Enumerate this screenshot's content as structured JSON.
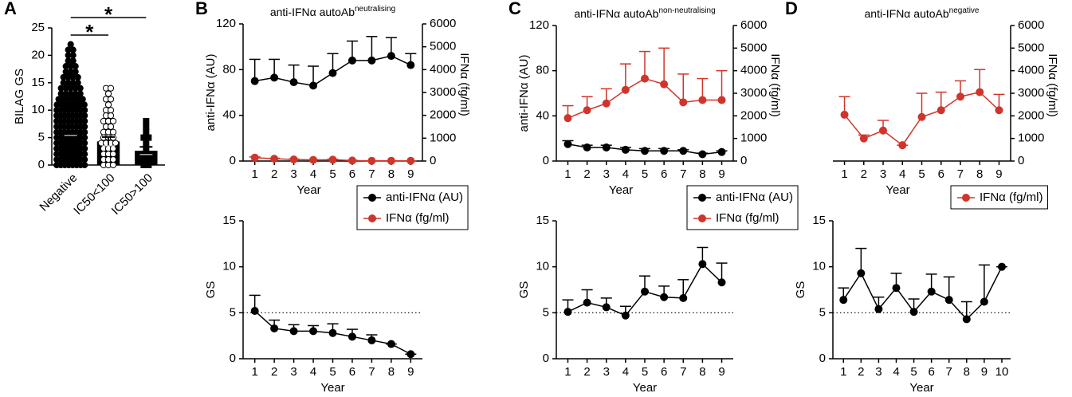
{
  "chart_data": [
    {
      "type": "bar",
      "panel": "A",
      "ylabel": "BILAG GS",
      "categories": [
        "Negative",
        "IC50<100",
        "IC50>100"
      ],
      "values": [
        5.8,
        4.3,
        2.6
      ],
      "errors": [
        0.4,
        0.8,
        0.7
      ],
      "color": "#000000",
      "markers": [
        "circle",
        "open-circle",
        "square"
      ],
      "points": [
        [
          22,
          21,
          21,
          20,
          20,
          19,
          19,
          18,
          18,
          18,
          17,
          17,
          17,
          16,
          16,
          16,
          16,
          15,
          15,
          15,
          15,
          14,
          14,
          14,
          14,
          14,
          13,
          13,
          13,
          13,
          13,
          12,
          12,
          12,
          12,
          12,
          12,
          11,
          11,
          11,
          11,
          11,
          11,
          11,
          10,
          10,
          10,
          10,
          10,
          10,
          10,
          10,
          9,
          9,
          9,
          9,
          9,
          9,
          9,
          9,
          8,
          8,
          8,
          8,
          8,
          8,
          8,
          8,
          7,
          7,
          7,
          7,
          7,
          7,
          7,
          7,
          6,
          6,
          6,
          6,
          6,
          6,
          6,
          6,
          5,
          5,
          5,
          5,
          5,
          5,
          5,
          5,
          4,
          4,
          4,
          4,
          4,
          4,
          4,
          4,
          3,
          3,
          3,
          3,
          3,
          3,
          3,
          3,
          2,
          2,
          2,
          2,
          2,
          2,
          2,
          2,
          1,
          1,
          1,
          1,
          1,
          1,
          1,
          1,
          0,
          0,
          0,
          0,
          0,
          0,
          0,
          0
        ],
        [
          14,
          14,
          13,
          12,
          12,
          11,
          10,
          10,
          9,
          9,
          8,
          8,
          8,
          7,
          7,
          6,
          6,
          6,
          5,
          5,
          5,
          4,
          4,
          4,
          4,
          3,
          3,
          3,
          2,
          2,
          2,
          1,
          1,
          1,
          0,
          0,
          0
        ],
        [
          8,
          7,
          6,
          5,
          5,
          4,
          3,
          2,
          2,
          1,
          1,
          0,
          0
        ]
      ],
      "ylim": [
        0,
        25
      ],
      "yticks": [
        0,
        5,
        10,
        15,
        20,
        25
      ],
      "significance": [
        {
          "label": "*",
          "from": 0,
          "to": 2
        },
        {
          "label": "*",
          "from": 0,
          "to": 1
        }
      ]
    },
    {
      "type": "line",
      "panel": "B",
      "title": "anti-IFNα autoAb",
      "title_superscript": "neutralising",
      "xlabel": "Year",
      "ylabel": "anti-IFNα (AU)",
      "y2label": "IFNα (fg/ml)",
      "x": [
        1,
        2,
        3,
        4,
        5,
        6,
        7,
        8,
        9
      ],
      "xlim": [
        0.4,
        9.6
      ],
      "xticks": [
        1,
        2,
        3,
        4,
        5,
        6,
        7,
        8,
        9
      ],
      "ylim": [
        0,
        120
      ],
      "yticks": [
        0,
        40,
        80,
        120
      ],
      "y2lim": [
        0,
        6000
      ],
      "y2ticks": [
        0,
        1000,
        2000,
        3000,
        4000,
        5000,
        6000
      ],
      "legend": "below-right",
      "series": [
        {
          "name": "anti-IFNα (AU)",
          "color": "#000000",
          "values": [
            70,
            73,
            69,
            66,
            77,
            88,
            88,
            92,
            84
          ],
          "errors": [
            19,
            16,
            15,
            17,
            17,
            17,
            21,
            16,
            10
          ]
        },
        {
          "name": "IFNα (fg/ml)",
          "color": "#d0352b",
          "axis": "y2",
          "values": [
            150,
            100,
            70,
            50,
            60,
            20,
            10,
            10,
            10
          ],
          "errors": [
            30,
            20,
            20,
            10,
            20,
            10,
            0,
            0,
            0
          ]
        }
      ]
    },
    {
      "type": "line",
      "xlabel": "Year",
      "ylabel": "GS",
      "x": [
        1,
        2,
        3,
        4,
        5,
        6,
        7,
        8,
        9
      ],
      "xlim": [
        0.4,
        9.6
      ],
      "xticks": [
        1,
        2,
        3,
        4,
        5,
        6,
        7,
        8,
        9
      ],
      "ylim": [
        0,
        15
      ],
      "yticks": [
        0,
        5,
        10,
        15
      ],
      "reference_line": 5,
      "series": [
        {
          "color": "#000000",
          "values": [
            5.2,
            3.3,
            3.0,
            3.0,
            2.8,
            2.4,
            2.0,
            1.6,
            0.5
          ],
          "errors": [
            1.7,
            0.9,
            0.7,
            0.6,
            1.0,
            0.8,
            0.6,
            0,
            0
          ]
        }
      ]
    },
    {
      "type": "line",
      "panel": "C",
      "title": "anti-IFNα autoAb",
      "title_superscript": "non-neutralising",
      "xlabel": "Year",
      "ylabel": "anti-IFNα (AU)",
      "y2label": "IFNα (fg/ml)",
      "x": [
        1,
        2,
        3,
        4,
        5,
        6,
        7,
        8,
        9
      ],
      "xlim": [
        0.4,
        9.6
      ],
      "xticks": [
        1,
        2,
        3,
        4,
        5,
        6,
        7,
        8,
        9
      ],
      "ylim": [
        0,
        120
      ],
      "yticks": [
        0,
        40,
        80,
        120
      ],
      "y2lim": [
        0,
        6000
      ],
      "y2ticks": [
        0,
        1000,
        2000,
        3000,
        4000,
        5000,
        6000
      ],
      "legend": "below-right",
      "series": [
        {
          "name": "anti-IFNα (AU)",
          "color": "#000000",
          "values": [
            15,
            12,
            12,
            10,
            9,
            9,
            9,
            6,
            8
          ],
          "errors": [
            3,
            2,
            2,
            2,
            2,
            2,
            1,
            1,
            1
          ]
        },
        {
          "name": "IFNα (fg/ml)",
          "color": "#d0352b",
          "axis": "y2",
          "values": [
            1900,
            2250,
            2550,
            3150,
            3650,
            3400,
            2600,
            2700,
            2700
          ],
          "errors": [
            550,
            600,
            650,
            1150,
            1200,
            1600,
            1250,
            950,
            1300
          ]
        }
      ]
    },
    {
      "type": "line",
      "xlabel": "Year",
      "ylabel": "GS",
      "x": [
        1,
        2,
        3,
        4,
        5,
        6,
        7,
        8,
        9
      ],
      "xlim": [
        0.4,
        9.6
      ],
      "xticks": [
        1,
        2,
        3,
        4,
        5,
        6,
        7,
        8,
        9
      ],
      "ylim": [
        0,
        15
      ],
      "yticks": [
        0,
        5,
        10,
        15
      ],
      "reference_line": 5,
      "series": [
        {
          "color": "#000000",
          "values": [
            5.1,
            6.1,
            5.6,
            4.7,
            7.3,
            6.7,
            6.6,
            10.3,
            8.3
          ],
          "errors": [
            1.3,
            1.4,
            1.0,
            1.0,
            1.7,
            1.2,
            2.0,
            1.8,
            2.1
          ]
        }
      ]
    },
    {
      "type": "line",
      "panel": "D",
      "title": "anti-IFNα autoAb",
      "title_superscript": "negative",
      "xlabel": "Year",
      "y2label": "IFNα (fg/ml)",
      "x": [
        1,
        2,
        3,
        4,
        5,
        6,
        7,
        8,
        9
      ],
      "xlim": [
        0.4,
        9.6
      ],
      "xticks": [
        1,
        2,
        3,
        4,
        5,
        6,
        7,
        8,
        9
      ],
      "y2lim": [
        0,
        6000
      ],
      "y2ticks": [
        0,
        1000,
        2000,
        3000,
        4000,
        5000,
        6000
      ],
      "legend": "below-right",
      "series": [
        {
          "name": "IFNα (fg/ml)",
          "color": "#d0352b",
          "axis": "y2",
          "values": [
            2050,
            1000,
            1350,
            700,
            1950,
            2250,
            2850,
            3050,
            2250
          ],
          "errors": [
            800,
            150,
            450,
            0,
            1050,
            800,
            700,
            1000,
            700
          ]
        }
      ]
    },
    {
      "type": "line",
      "xlabel": "Year",
      "ylabel": "GS",
      "x": [
        1,
        2,
        3,
        4,
        5,
        6,
        7,
        8,
        9,
        10
      ],
      "xlim": [
        0.4,
        10.5
      ],
      "xticks": [
        1,
        2,
        3,
        4,
        5,
        6,
        7,
        8,
        9,
        10
      ],
      "ylim": [
        0,
        15
      ],
      "yticks": [
        0,
        5,
        10,
        15
      ],
      "reference_line": 5,
      "series": [
        {
          "color": "#000000",
          "values": [
            6.4,
            9.3,
            5.4,
            7.7,
            5.1,
            7.3,
            6.4,
            4.3,
            6.2,
            10.0
          ],
          "errors": [
            1.3,
            2.7,
            1.3,
            1.6,
            1.4,
            1.9,
            2.5,
            1.9,
            4.0,
            0
          ]
        }
      ]
    }
  ]
}
